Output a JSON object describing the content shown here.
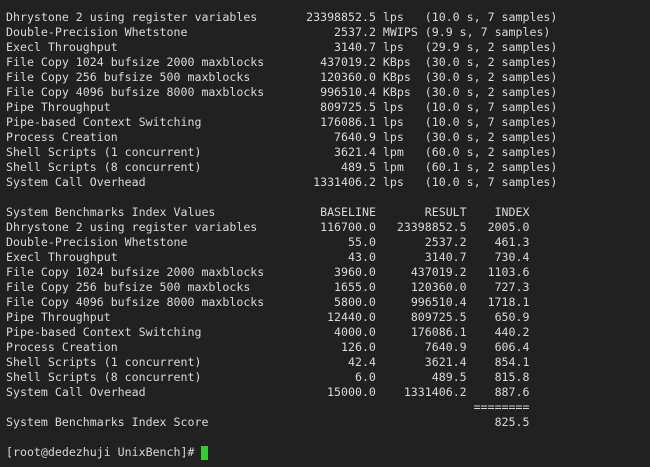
{
  "terminal": {
    "colors": {
      "background": "#212121",
      "foreground": "#d9d9d9",
      "cursor_color": "#33cc33"
    },
    "results": [
      {
        "name": "Dhrystone 2 using register variables",
        "value": "23398852.5",
        "unit": "lps",
        "timing": "(10.0 s, 7 samples)"
      },
      {
        "name": "Double-Precision Whetstone",
        "value": "2537.2",
        "unit": "MWIPS",
        "timing": "(9.9 s, 7 samples)"
      },
      {
        "name": "Execl Throughput",
        "value": "3140.7",
        "unit": "lps",
        "timing": "(29.9 s, 2 samples)"
      },
      {
        "name": "File Copy 1024 bufsize 2000 maxblocks",
        "value": "437019.2",
        "unit": "KBps",
        "timing": "(30.0 s, 2 samples)"
      },
      {
        "name": "File Copy 256 bufsize 500 maxblocks",
        "value": "120360.0",
        "unit": "KBps",
        "timing": "(30.0 s, 2 samples)"
      },
      {
        "name": "File Copy 4096 bufsize 8000 maxblocks",
        "value": "996510.4",
        "unit": "KBps",
        "timing": "(30.0 s, 2 samples)"
      },
      {
        "name": "Pipe Throughput",
        "value": "809725.5",
        "unit": "lps",
        "timing": "(10.0 s, 7 samples)"
      },
      {
        "name": "Pipe-based Context Switching",
        "value": "176086.1",
        "unit": "lps",
        "timing": "(10.0 s, 7 samples)"
      },
      {
        "name": "Process Creation",
        "value": "7640.9",
        "unit": "lps",
        "timing": "(30.0 s, 2 samples)"
      },
      {
        "name": "Shell Scripts (1 concurrent)",
        "value": "3621.4",
        "unit": "lpm",
        "timing": "(60.0 s, 2 samples)"
      },
      {
        "name": "Shell Scripts (8 concurrent)",
        "value": "489.5",
        "unit": "lpm",
        "timing": "(60.1 s, 2 samples)"
      },
      {
        "name": "System Call Overhead",
        "value": "1331406.2",
        "unit": "lps",
        "timing": "(10.0 s, 7 samples)"
      }
    ],
    "index_table": {
      "title": "System Benchmarks Index Values",
      "header_baseline": "BASELINE",
      "header_result": "RESULT",
      "header_index": "INDEX",
      "rows": [
        {
          "name": "Dhrystone 2 using register variables",
          "baseline": "116700.0",
          "result": "23398852.5",
          "index": "2005.0"
        },
        {
          "name": "Double-Precision Whetstone",
          "baseline": "55.0",
          "result": "2537.2",
          "index": "461.3"
        },
        {
          "name": "Execl Throughput",
          "baseline": "43.0",
          "result": "3140.7",
          "index": "730.4"
        },
        {
          "name": "File Copy 1024 bufsize 2000 maxblocks",
          "baseline": "3960.0",
          "result": "437019.2",
          "index": "1103.6"
        },
        {
          "name": "File Copy 256 bufsize 500 maxblocks",
          "baseline": "1655.0",
          "result": "120360.0",
          "index": "727.3"
        },
        {
          "name": "File Copy 4096 bufsize 8000 maxblocks",
          "baseline": "5800.0",
          "result": "996510.4",
          "index": "1718.1"
        },
        {
          "name": "Pipe Throughput",
          "baseline": "12440.0",
          "result": "809725.5",
          "index": "650.9"
        },
        {
          "name": "Pipe-based Context Switching",
          "baseline": "4000.0",
          "result": "176086.1",
          "index": "440.2"
        },
        {
          "name": "Process Creation",
          "baseline": "126.0",
          "result": "7640.9",
          "index": "606.4"
        },
        {
          "name": "Shell Scripts (1 concurrent)",
          "baseline": "42.4",
          "result": "3621.4",
          "index": "854.1"
        },
        {
          "name": "Shell Scripts (8 concurrent)",
          "baseline": "6.0",
          "result": "489.5",
          "index": "815.8"
        },
        {
          "name": "System Call Overhead",
          "baseline": "15000.0",
          "result": "1331406.2",
          "index": "887.6"
        }
      ],
      "separator": "========",
      "score_label": "System Benchmarks Index Score",
      "score_value": "825.5"
    },
    "prompt": "[root@dedezhuji UnixBench]# "
  }
}
